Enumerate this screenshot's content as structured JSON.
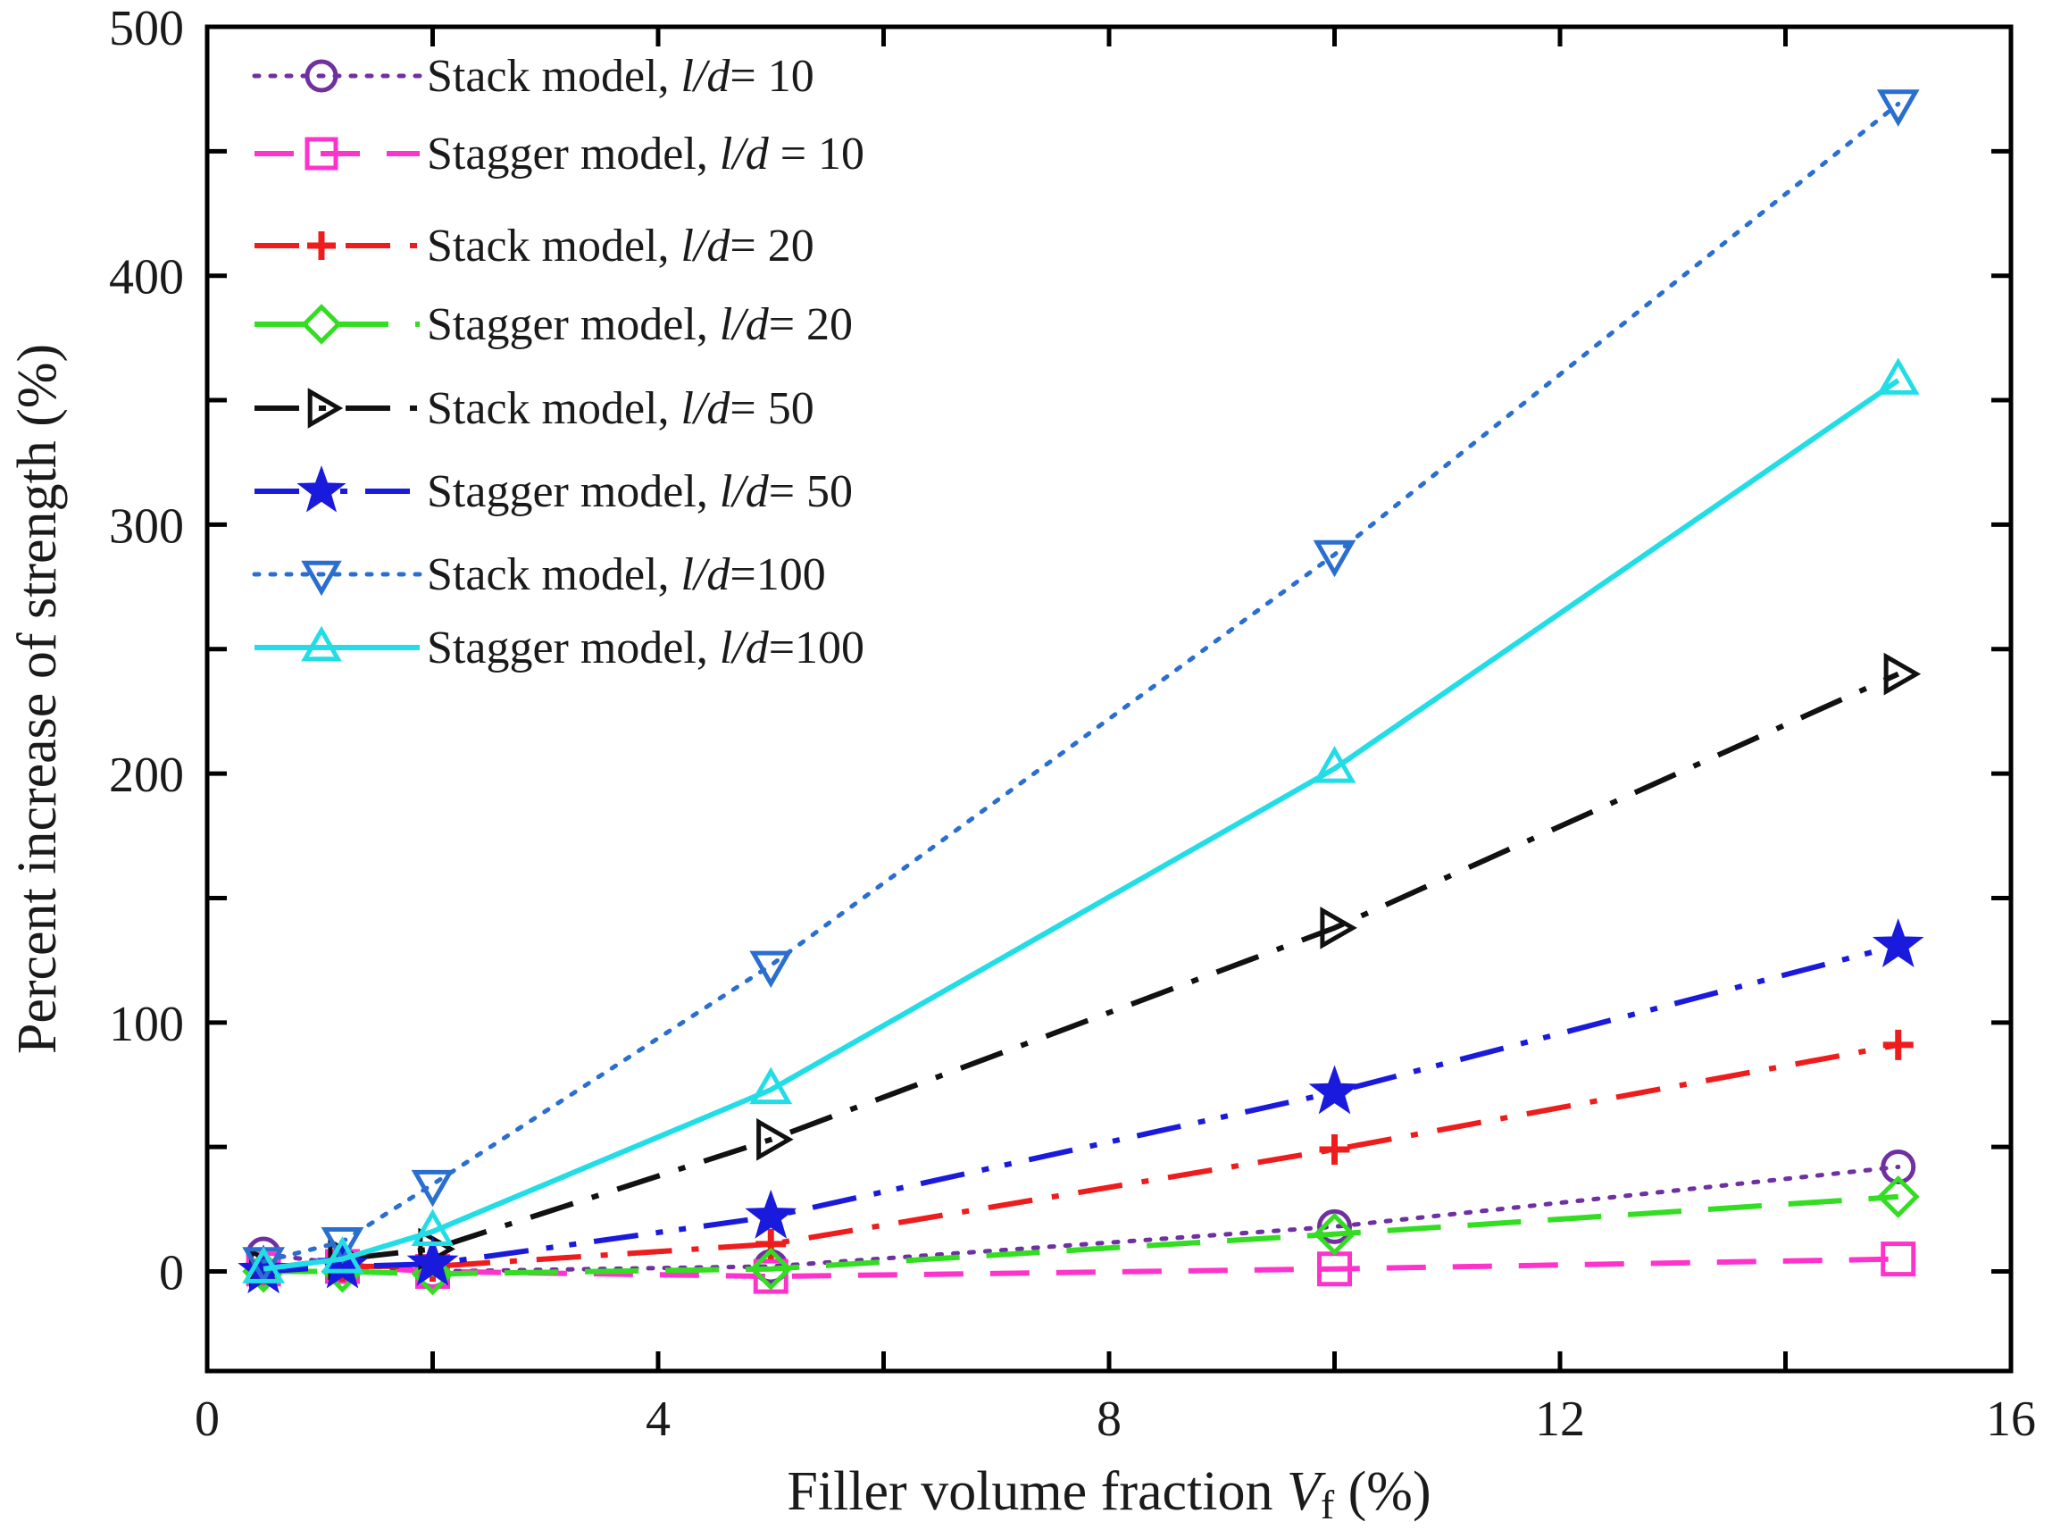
{
  "chart_data": {
    "type": "line",
    "title": "",
    "xlabel": {
      "main": "Filler volume fraction ",
      "var": "V",
      "sub": "f",
      "unit": " (%)"
    },
    "ylabel": "Percent increase of strength (%)",
    "xlim": [
      0,
      16
    ],
    "ylim": [
      -40,
      500
    ],
    "xticks": [
      0,
      4,
      8,
      12,
      16
    ],
    "yticks": [
      0,
      100,
      200,
      300,
      400,
      500
    ],
    "legend_position": "top-left",
    "series": [
      {
        "name": "Stack model, l/d= 10",
        "label_prefix": "Stack model, ",
        "label_var": "l/d",
        "label_suffix": "= 10",
        "color": "#7030a0",
        "marker": "circle",
        "dash": "dotted",
        "x": [
          0.5,
          1.2,
          2,
          5,
          10,
          15
        ],
        "y": [
          7,
          3,
          0,
          2,
          18,
          42
        ]
      },
      {
        "name": "Stagger model, l/d = 10",
        "label_prefix": "Stagger model, ",
        "label_var": "l/d",
        "label_suffix": " = 10",
        "color": "#ff33cc",
        "marker": "square",
        "dash": "dashed",
        "x": [
          0.5,
          1.2,
          2,
          5,
          10,
          15
        ],
        "y": [
          1,
          2,
          0,
          -2,
          1,
          5
        ]
      },
      {
        "name": "Stack model, l/d= 20",
        "label_prefix": "Stack model, ",
        "label_var": "l/d",
        "label_suffix": "= 20",
        "color": "#ee1c1c",
        "marker": "plus",
        "dash": "dashdot",
        "x": [
          0.5,
          1.2,
          2,
          5,
          10,
          15
        ],
        "y": [
          1,
          2,
          2,
          11,
          49,
          91
        ]
      },
      {
        "name": "Stagger model, l/d= 20",
        "label_prefix": "Stagger model, ",
        "label_var": "l/d",
        "label_suffix": "= 20",
        "color": "#33dd22",
        "marker": "diamond",
        "dash": "longdash",
        "x": [
          0.5,
          1.2,
          2,
          5,
          10,
          15
        ],
        "y": [
          0,
          0,
          -1,
          1,
          15,
          30
        ]
      },
      {
        "name": "Stack model, l/d= 50",
        "label_prefix": "Stack model, ",
        "label_var": "l/d",
        "label_suffix": "= 50",
        "color": "#111111",
        "marker": "triangle-right",
        "dash": "dashdot",
        "x": [
          0.5,
          1.2,
          2,
          5,
          10,
          15
        ],
        "y": [
          1,
          5,
          9,
          53,
          138,
          240
        ]
      },
      {
        "name": "Stagger model, l/d= 50",
        "label_prefix": "Stagger model, ",
        "label_var": "l/d",
        "label_suffix": "= 50",
        "color": "#1a1adc",
        "marker": "star",
        "dash": "dashdotdot",
        "x": [
          0.5,
          1.2,
          2,
          5,
          10,
          15
        ],
        "y": [
          0,
          2,
          3,
          22,
          72,
          131
        ]
      },
      {
        "name": "Stack model, l/d=100",
        "label_prefix": "Stack model, ",
        "label_var": "l/d",
        "label_suffix": "=100",
        "color": "#2a6fd0",
        "marker": "triangle-down",
        "dash": "dotted",
        "x": [
          0.5,
          1.2,
          2,
          5,
          10,
          15
        ],
        "y": [
          4,
          12,
          35,
          123,
          288,
          469
        ]
      },
      {
        "name": "Stagger model, l/d=100",
        "label_prefix": "Stagger model, ",
        "label_var": "l/d",
        "label_suffix": "=100",
        "color": "#22dde6",
        "marker": "triangle-up",
        "dash": "solid",
        "x": [
          0.5,
          1.2,
          2,
          5,
          10,
          15
        ],
        "y": [
          1,
          5,
          16,
          73,
          202,
          358
        ]
      }
    ]
  }
}
